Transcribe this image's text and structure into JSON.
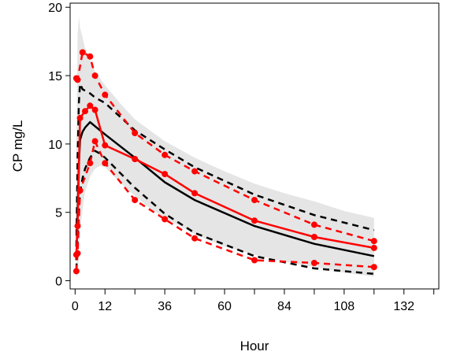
{
  "chart_data": {
    "type": "line",
    "title": "",
    "xlabel": "Hour",
    "ylabel": "CP mg/L",
    "xlim": [
      -2,
      146
    ],
    "ylim": [
      -0.6,
      20.3
    ],
    "xticks": [
      0,
      12,
      36,
      60,
      84,
      108,
      132
    ],
    "xticks_minor": [
      24,
      48,
      72,
      96,
      120,
      144
    ],
    "yticks": [
      0,
      5,
      10,
      15,
      20
    ],
    "grid": false,
    "legend": "none",
    "colors": {
      "band": "#e5e5e5",
      "simulated": "#000000",
      "observed": "#ff0000"
    },
    "prediction_band": {
      "x": [
        0.5,
        1,
        1.5,
        2,
        3,
        4,
        6,
        8,
        10,
        12,
        18,
        24,
        30,
        36,
        42,
        48,
        60,
        72,
        84,
        96,
        108,
        120
      ],
      "lower": [
        0.2,
        0.5,
        1.8,
        3.5,
        5.2,
        6.5,
        7.6,
        8.2,
        8.4,
        8.3,
        7.2,
        6.2,
        5.3,
        4.6,
        4.0,
        3.4,
        2.5,
        1.9,
        1.4,
        1.0,
        0.6,
        0.3
      ],
      "upper": [
        9.5,
        18.0,
        19.3,
        18.5,
        17.8,
        17.0,
        16.2,
        15.3,
        14.8,
        14.3,
        13.0,
        11.8,
        11.0,
        10.2,
        9.6,
        9.0,
        8.0,
        7.1,
        6.4,
        5.8,
        5.1,
        4.6
      ]
    },
    "series": [
      {
        "role": "simulated-median",
        "style": "solid",
        "x": [
          0.5,
          1,
          1.5,
          2,
          3,
          4,
          6,
          8,
          10,
          12,
          24,
          36,
          48,
          72,
          96,
          120
        ],
        "values": [
          1.5,
          5.0,
          8.5,
          10.3,
          10.9,
          11.2,
          11.6,
          11.3,
          11.0,
          10.7,
          9.0,
          7.2,
          5.9,
          4.0,
          2.7,
          1.8
        ]
      },
      {
        "role": "simulated-upper",
        "style": "dashed",
        "x": [
          0.5,
          1,
          1.5,
          2,
          3,
          4,
          6,
          8,
          10,
          12,
          24,
          36,
          48,
          72,
          96,
          120
        ],
        "values": [
          2.5,
          9.0,
          13.0,
          14.4,
          14.0,
          13.9,
          13.7,
          13.4,
          13.2,
          13.0,
          11.0,
          9.6,
          8.3,
          6.3,
          4.8,
          3.7
        ]
      },
      {
        "role": "simulated-lower",
        "style": "dashed",
        "x": [
          0.5,
          1,
          1.5,
          2,
          3,
          4,
          6,
          8,
          10,
          12,
          24,
          36,
          48,
          72,
          96,
          120
        ],
        "values": [
          0.8,
          3.0,
          5.0,
          6.5,
          7.5,
          8.2,
          9.0,
          9.5,
          9.3,
          9.0,
          6.8,
          4.9,
          3.5,
          1.8,
          0.9,
          0.5
        ]
      },
      {
        "role": "observed-median",
        "style": "solid",
        "x": [
          0.5,
          1,
          2,
          4,
          6,
          8,
          12,
          24,
          36,
          48,
          72,
          96,
          120
        ],
        "values": [
          1.9,
          4.0,
          11.9,
          12.4,
          12.8,
          12.5,
          9.9,
          8.9,
          7.8,
          6.4,
          4.4,
          3.2,
          2.4
        ]
      },
      {
        "role": "observed-upper",
        "style": "dashed",
        "x": [
          0.5,
          1,
          3,
          6,
          8,
          12,
          24,
          36,
          48,
          72,
          96,
          120
        ],
        "values": [
          14.8,
          14.7,
          16.7,
          16.4,
          15.0,
          13.6,
          10.8,
          9.2,
          8.0,
          5.9,
          4.1,
          2.9
        ]
      },
      {
        "role": "observed-lower",
        "style": "dashed",
        "x": [
          0.5,
          1,
          2,
          6,
          8,
          12,
          24,
          36,
          48,
          72,
          96,
          120
        ],
        "values": [
          0.7,
          2.0,
          6.6,
          8.6,
          10.2,
          8.6,
          5.9,
          4.5,
          3.1,
          1.5,
          1.3,
          1.0
        ]
      }
    ]
  }
}
